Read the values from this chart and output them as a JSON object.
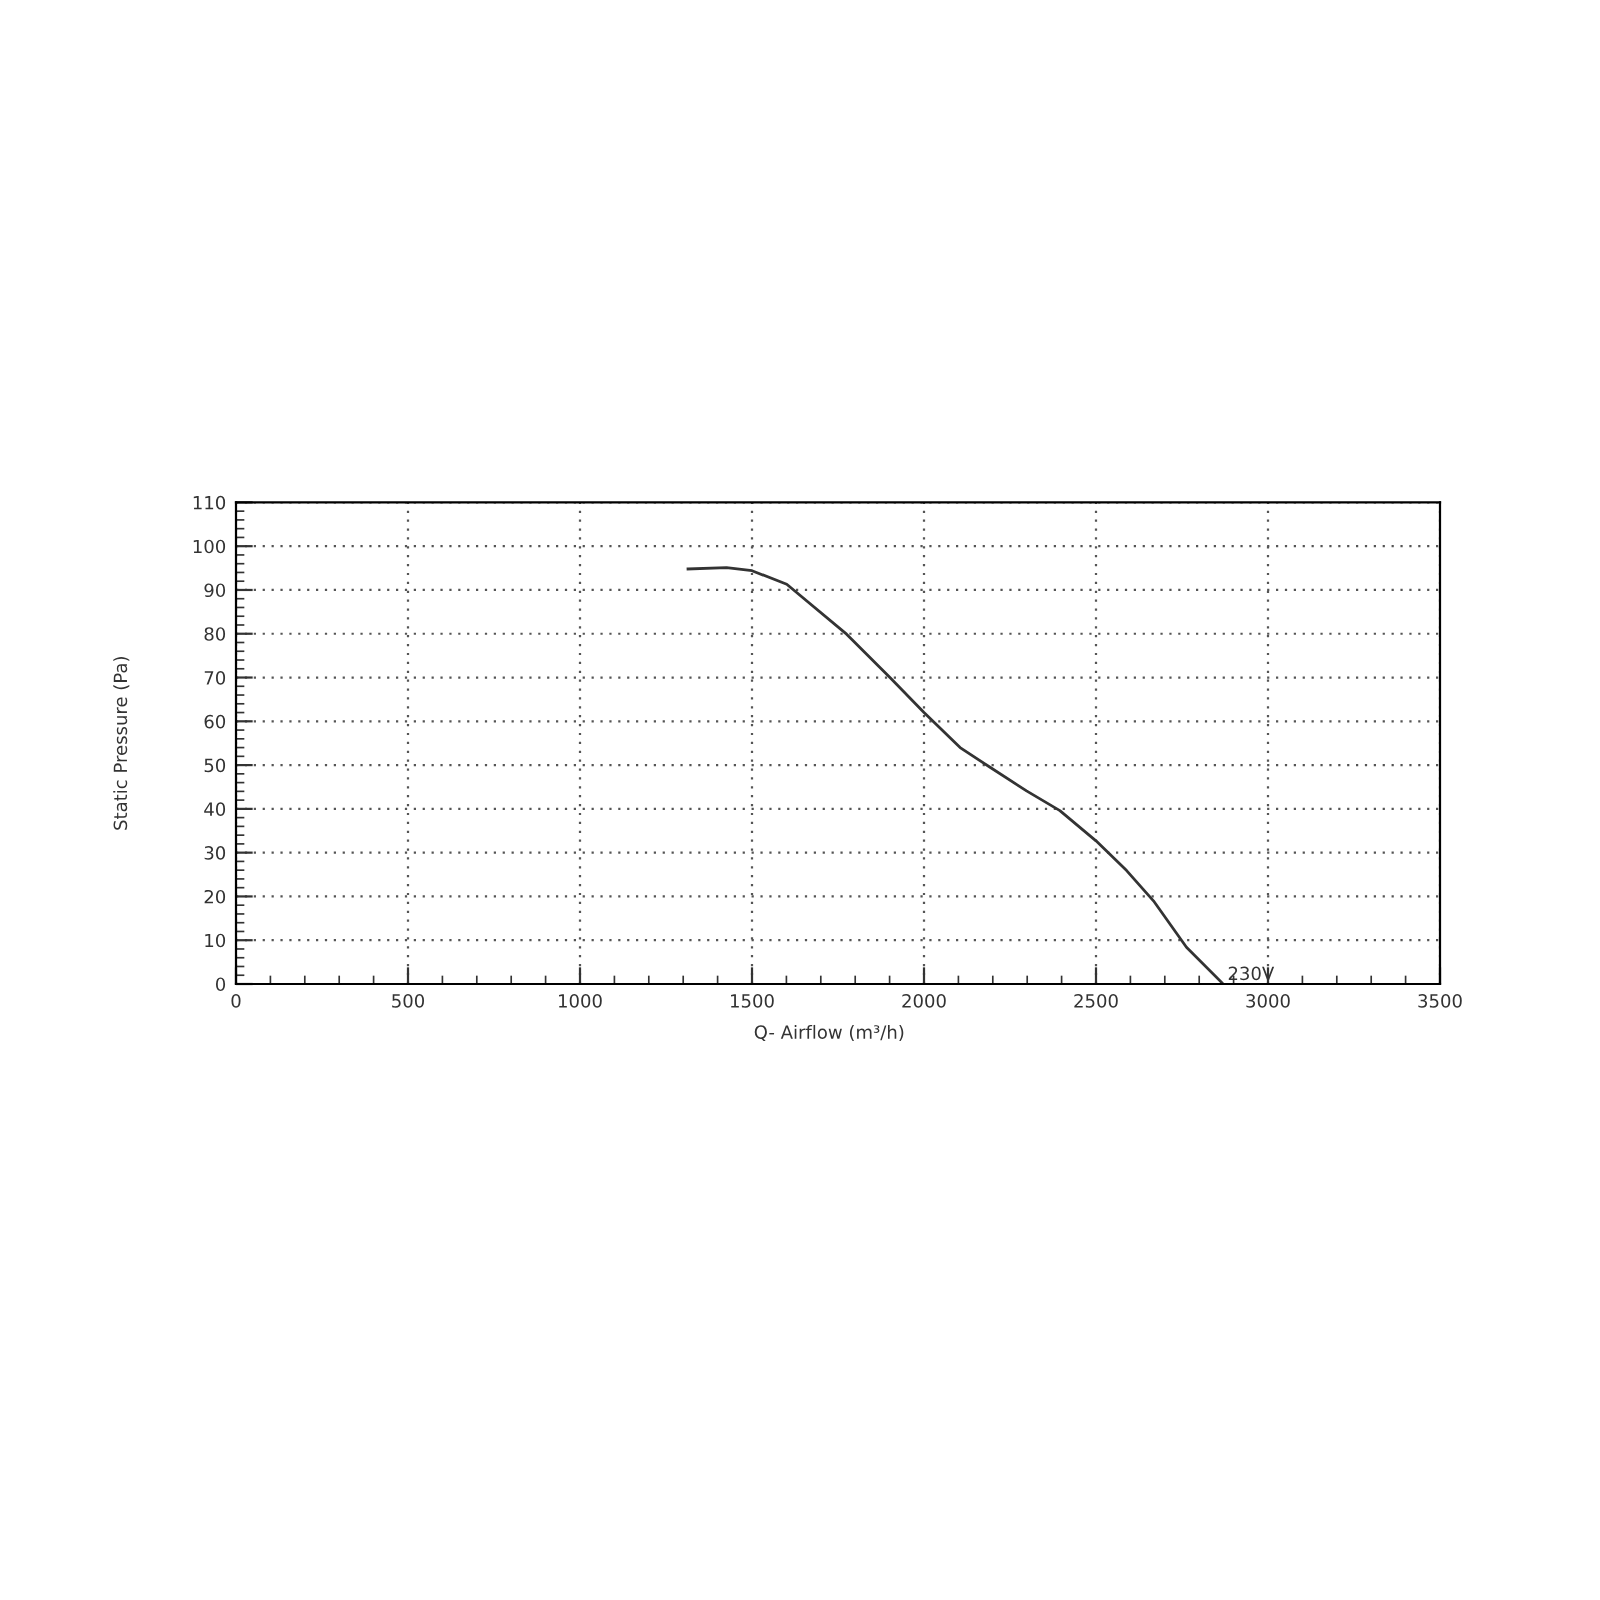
{
  "chart_data": {
    "type": "line",
    "xlabel": "Q- Airflow (m³/h)",
    "ylabel": "Static Pressure (Pa)",
    "series": [
      {
        "color": "#333333",
        "x": [
          1314,
          1426,
          1500,
          1601,
          1775,
          1901,
          2000,
          2105,
          2192,
          2298,
          2395,
          2500,
          2589,
          2667,
          2763,
          2866
        ],
        "values": [
          94.8,
          95.1,
          94.4,
          91.3,
          79.9,
          70,
          62,
          54,
          49.5,
          44.1,
          39.6,
          32.7,
          25.9,
          19,
          8.4,
          0.3
        ]
      }
    ],
    "annotations": [
      {
        "text": "230V",
        "x": 2866,
        "y": 0.3
      }
    ],
    "xlim": [
      0,
      3500
    ],
    "ylim": [
      0,
      110
    ],
    "xticks": [
      0,
      500,
      1000,
      1500,
      2000,
      2500,
      3000,
      3500
    ],
    "yticks": [
      0,
      10,
      20,
      30,
      40,
      50,
      60,
      70,
      80,
      90,
      100,
      110
    ],
    "grid": true,
    "marker": "none",
    "line_style": "solid"
  }
}
